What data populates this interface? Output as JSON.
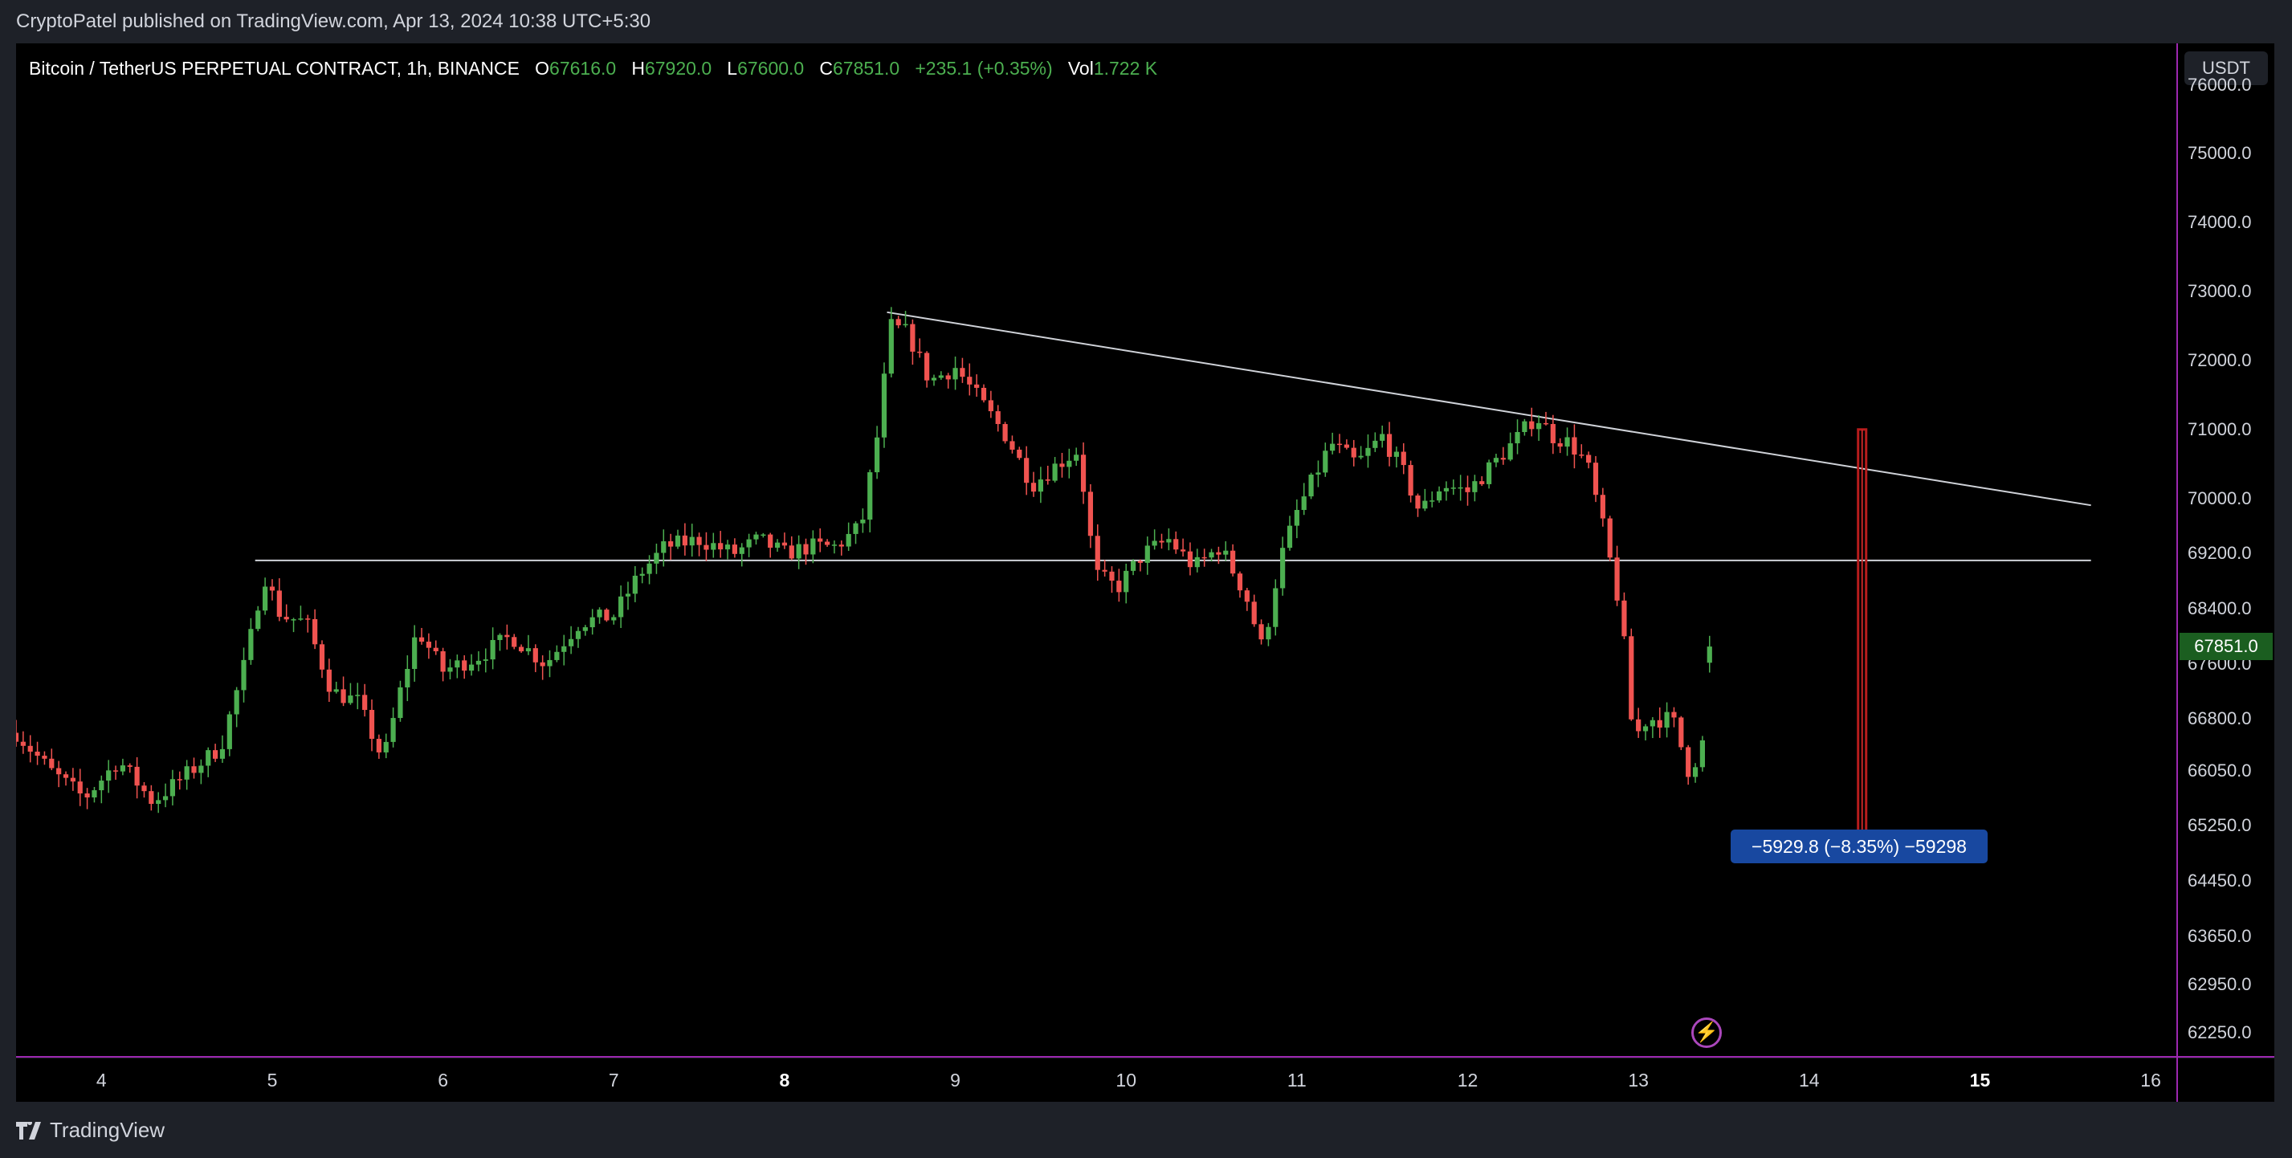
{
  "header": {
    "published_text": "CryptoPatel published on TradingView.com, Apr 13, 2024 10:38 UTC+5:30"
  },
  "legend": {
    "symbol": "Bitcoin / TetherUS PERPETUAL CONTRACT, 1h, BINANCE",
    "o_label": "O",
    "o_value": "67616.0",
    "h_label": "H",
    "h_value": "67920.0",
    "l_label": "L",
    "l_value": "67600.0",
    "c_label": "C",
    "c_value": "67851.0",
    "change": "+235.1 (+0.35%)",
    "vol_label": "Vol",
    "vol_value": "1.722 K"
  },
  "price_scale": {
    "currency": "USDT",
    "ticks": [
      "76000.0",
      "75000.0",
      "74000.0",
      "73000.0",
      "72000.0",
      "71000.0",
      "70000.0",
      "69200.0",
      "68400.0",
      "67600.0",
      "66800.0",
      "66050.0",
      "65250.0",
      "64450.0",
      "63650.0",
      "62950.0",
      "62250.0"
    ],
    "last_price": "67851.0"
  },
  "time_scale": {
    "ticks": [
      {
        "label": "4",
        "bold": false
      },
      {
        "label": "5",
        "bold": false
      },
      {
        "label": "6",
        "bold": false
      },
      {
        "label": "7",
        "bold": false
      },
      {
        "label": "8",
        "bold": true
      },
      {
        "label": "9",
        "bold": false
      },
      {
        "label": "10",
        "bold": false
      },
      {
        "label": "11",
        "bold": false
      },
      {
        "label": "12",
        "bold": false
      },
      {
        "label": "13",
        "bold": false
      },
      {
        "label": "14",
        "bold": false
      },
      {
        "label": "15",
        "bold": true
      },
      {
        "label": "16",
        "bold": false
      }
    ]
  },
  "measure": {
    "label": "−5929.8 (−8.35%) −59298"
  },
  "footer": {
    "brand": "TradingView"
  },
  "colors": {
    "up": "#4caf50",
    "down": "#f05350",
    "background": "#000000",
    "separator": "#9c27b0"
  },
  "chart_data": {
    "type": "candlestick",
    "symbol": "BTCUSDT.P",
    "interval": "1h",
    "x_unit": "day of month (April 2024)",
    "ylim": [
      61900,
      76600
    ],
    "x_range": [
      3.5,
      16.15
    ],
    "close_points": [
      [
        3.5,
        66600
      ],
      [
        3.7,
        66050
      ],
      [
        3.9,
        65650
      ],
      [
        4.1,
        66200
      ],
      [
        4.3,
        65600
      ],
      [
        4.5,
        66000
      ],
      [
        4.7,
        66400
      ],
      [
        4.85,
        67700
      ],
      [
        4.95,
        68900
      ],
      [
        5.05,
        68300
      ],
      [
        5.2,
        68200
      ],
      [
        5.35,
        67200
      ],
      [
        5.5,
        67050
      ],
      [
        5.65,
        66200
      ],
      [
        5.75,
        67200
      ],
      [
        5.85,
        68100
      ],
      [
        6.0,
        67500
      ],
      [
        6.2,
        67700
      ],
      [
        6.4,
        68000
      ],
      [
        6.6,
        67600
      ],
      [
        6.8,
        68200
      ],
      [
        7.0,
        68300
      ],
      [
        7.15,
        68900
      ],
      [
        7.3,
        69300
      ],
      [
        7.5,
        69400
      ],
      [
        7.7,
        69200
      ],
      [
        7.85,
        69400
      ],
      [
        8.0,
        69200
      ],
      [
        8.15,
        69300
      ],
      [
        8.3,
        69300
      ],
      [
        8.45,
        69600
      ],
      [
        8.55,
        71000
      ],
      [
        8.62,
        72500
      ],
      [
        8.72,
        72400
      ],
      [
        8.85,
        71700
      ],
      [
        9.0,
        71900
      ],
      [
        9.15,
        71400
      ],
      [
        9.3,
        70900
      ],
      [
        9.45,
        70200
      ],
      [
        9.6,
        70500
      ],
      [
        9.72,
        70700
      ],
      [
        9.82,
        68900
      ],
      [
        9.95,
        68700
      ],
      [
        10.1,
        69200
      ],
      [
        10.25,
        69400
      ],
      [
        10.4,
        69000
      ],
      [
        10.55,
        69300
      ],
      [
        10.7,
        68600
      ],
      [
        10.8,
        67800
      ],
      [
        10.9,
        69100
      ],
      [
        11.0,
        69800
      ],
      [
        11.1,
        70300
      ],
      [
        11.2,
        70800
      ],
      [
        11.35,
        70500
      ],
      [
        11.5,
        70900
      ],
      [
        11.62,
        70400
      ],
      [
        11.72,
        69800
      ],
      [
        11.85,
        70200
      ],
      [
        12.0,
        70100
      ],
      [
        12.15,
        70500
      ],
      [
        12.3,
        70900
      ],
      [
        12.4,
        71200
      ],
      [
        12.5,
        70900
      ],
      [
        12.6,
        70800
      ],
      [
        12.7,
        70500
      ],
      [
        12.8,
        69500
      ],
      [
        12.9,
        68300
      ],
      [
        12.97,
        66500
      ],
      [
        13.05,
        66800
      ],
      [
        13.2,
        66800
      ],
      [
        13.3,
        66000
      ],
      [
        13.4,
        66600
      ],
      [
        13.45,
        67851
      ]
    ],
    "last": {
      "open": 67616.0,
      "high": 67920.0,
      "low": 67600.0,
      "close": 67851.0,
      "change": 235.1,
      "change_pct": 0.35,
      "volume": "1.722 K"
    },
    "annotations": [
      {
        "type": "trendline",
        "from": [
          8.6,
          72700
        ],
        "to": [
          15.65,
          69900
        ]
      },
      {
        "type": "horizontal_line",
        "price": 69100,
        "from": 4.9,
        "to": 15.65
      },
      {
        "type": "price_range",
        "x": 14.31,
        "from_price": 71000,
        "to_price": 65100,
        "label": "−5929.8 (−8.35%) −59298"
      }
    ]
  }
}
